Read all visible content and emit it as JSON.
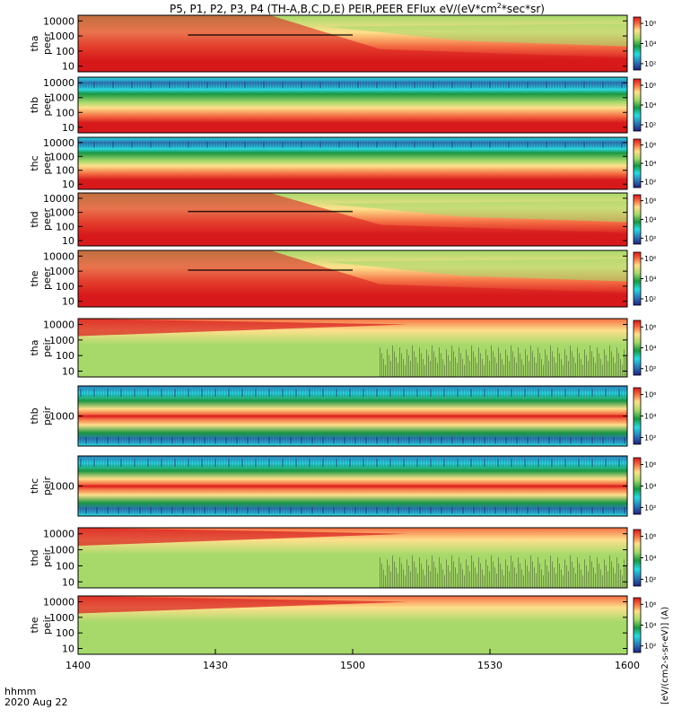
{
  "chart_data": {
    "type": "heatmap",
    "title": "P5, P1, P2, P3, P4 (TH-A,B,C,D,E) PEIR,PEER EFlux eV/(eV*cm",
    "title_sup": "2",
    "title_tail": "*sec*sr)",
    "xaxis": {
      "tick_labels": [
        "1400",
        "1430",
        "1500",
        "1530",
        "1600"
      ],
      "range": [
        "14:00",
        "16:00"
      ],
      "label_line1": "hhmm",
      "label_line2": "2020 Aug 22"
    },
    "colorbar_title": "[eV/(cm2-s-sr-eV)] (A)",
    "colorbar_ticks": [
      "10²",
      "10⁴",
      "10⁶"
    ],
    "panels": [
      {
        "probe": "tha",
        "species": "peer",
        "ylabels": [
          "10000",
          "1000",
          "100",
          "10"
        ],
        "regime": "electron-sheath"
      },
      {
        "probe": "thb",
        "species": "peer",
        "ylabels": [
          "10000",
          "1000",
          "100",
          "10"
        ],
        "regime": "electron-solarwind"
      },
      {
        "probe": "thc",
        "species": "peer",
        "ylabels": [
          "10000",
          "1000",
          "100",
          "10"
        ],
        "regime": "electron-solarwind"
      },
      {
        "probe": "thd",
        "species": "peer",
        "ylabels": [
          "10000",
          "1000",
          "100",
          "10"
        ],
        "regime": "electron-sheath"
      },
      {
        "probe": "the",
        "species": "peer",
        "ylabels": [
          "10000",
          "1000",
          "100",
          "10"
        ],
        "regime": "electron-sheath"
      },
      {
        "probe": "tha",
        "species": "peir",
        "ylabels": [
          "10000",
          "1000",
          "100",
          "10"
        ],
        "regime": "ion-sheath"
      },
      {
        "probe": "thb",
        "species": "peir",
        "ylabels": [
          "1000"
        ],
        "regime": "ion-beam"
      },
      {
        "probe": "thc",
        "species": "peir",
        "ylabels": [
          "1000"
        ],
        "regime": "ion-beam"
      },
      {
        "probe": "thd",
        "species": "peir",
        "ylabels": [
          "10000",
          "1000",
          "100",
          "10"
        ],
        "regime": "ion-sheath"
      },
      {
        "probe": "the",
        "species": "peir",
        "ylabels": [
          "10000",
          "1000",
          "100",
          "10"
        ],
        "regime": "ion-sheath"
      }
    ],
    "colors": {
      "red": "#d7191c",
      "orange": "#f46d43",
      "yellow": "#fee08b",
      "lightgreen": "#a6d96a",
      "green": "#1a9641",
      "cyan": "#2bd9e0",
      "blue": "#2c7bb6",
      "black": "#000000"
    }
  }
}
